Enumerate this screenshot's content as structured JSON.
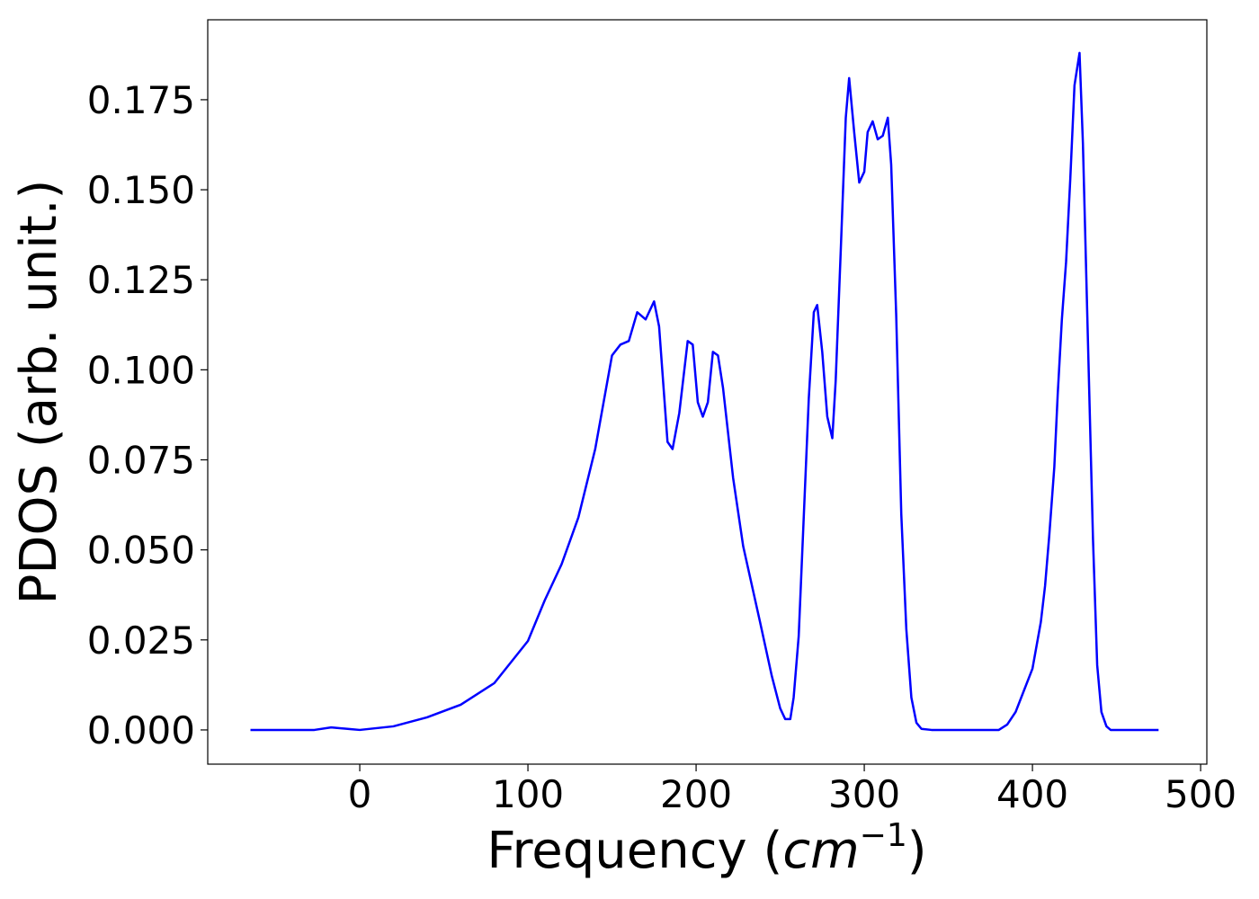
{
  "chart_data": {
    "type": "line",
    "x_label": [
      "Frequency (",
      "cm",
      "−1",
      ")"
    ],
    "y_label": "PDOS (arb. unit.)",
    "xlim": [
      -90.4,
      503.7
    ],
    "ylim": [
      -0.0095,
      0.1972
    ],
    "xticks": [
      0,
      100,
      200,
      300,
      400,
      500
    ],
    "yticks": [
      {
        "value": 0,
        "label": "0.000"
      },
      {
        "value": 0.025,
        "label": "0.025"
      },
      {
        "value": 0.05,
        "label": "0.050"
      },
      {
        "value": 0.075,
        "label": "0.075"
      },
      {
        "value": 0.1,
        "label": "0.100"
      },
      {
        "value": 0.125,
        "label": "0.125"
      },
      {
        "value": 0.15,
        "label": "0.150"
      },
      {
        "value": 0.175,
        "label": "0.175"
      }
    ],
    "grid": false,
    "x": [
      -65,
      -27,
      -17,
      -5,
      0,
      20,
      40,
      60,
      80,
      100,
      110,
      120,
      130,
      140,
      150,
      155,
      160,
      165,
      170,
      175,
      178,
      183,
      186,
      190,
      195,
      198,
      201,
      204,
      207,
      210,
      213,
      216,
      222,
      228,
      238,
      245,
      250,
      253,
      256,
      258,
      261,
      267,
      270,
      272,
      275,
      278,
      281,
      283,
      286,
      289,
      291,
      294,
      297,
      300,
      302,
      305,
      308,
      311,
      314,
      316,
      319,
      322,
      325,
      328,
      331,
      334,
      340,
      380,
      385,
      390,
      395,
      400,
      405,
      407.5,
      410,
      413,
      415,
      417.5,
      420,
      422.5,
      425,
      428,
      430,
      433,
      436,
      438.5,
      441,
      444,
      446.5,
      475
    ],
    "series": [
      {
        "name": null,
        "color": "#0000ff",
        "values": [
          0,
          0,
          0.0007,
          0.0002,
          0,
          0.001,
          0.0035,
          0.007,
          0.013,
          0.0247,
          0.036,
          0.046,
          0.059,
          0.078,
          0.104,
          0.107,
          0.108,
          0.116,
          0.114,
          0.119,
          0.112,
          0.08,
          0.078,
          0.088,
          0.108,
          0.107,
          0.091,
          0.087,
          0.091,
          0.105,
          0.104,
          0.095,
          0.07,
          0.051,
          0.03,
          0.015,
          0.006,
          0.003,
          0.003,
          0.009,
          0.026,
          0.092,
          0.116,
          0.118,
          0.105,
          0.087,
          0.081,
          0.097,
          0.133,
          0.17,
          0.181,
          0.166,
          0.152,
          0.155,
          0.166,
          0.169,
          0.164,
          0.165,
          0.17,
          0.157,
          0.115,
          0.06,
          0.028,
          0.009,
          0.002,
          0.0003,
          0,
          0,
          0.0015,
          0.005,
          0.011,
          0.017,
          0.03,
          0.04,
          0.054,
          0.073,
          0.093,
          0.114,
          0.13,
          0.153,
          0.179,
          0.188,
          0.163,
          0.108,
          0.053,
          0.018,
          0.005,
          0.001,
          0,
          0
        ]
      }
    ]
  }
}
